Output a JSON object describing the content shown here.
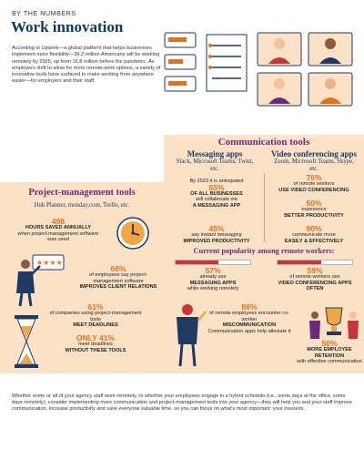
{
  "header": {
    "kicker": "BY THE NUMBERS",
    "title": "Work innovation",
    "intro": "According to Upwork—a global platform that helps businesses implement more flexibility—36.2 million Americans will be working remotely by 2025, up from 16.8 million before the pandemic. As employers shift to allow for more remote-work options, a variety of innovative tools have surfaced to make working from anywhere easier—for employers and their staff."
  },
  "communication": {
    "heading": "Communication tools",
    "messaging": {
      "title": "Messaging apps",
      "examples": "Slack, Microsoft Teams, Twist, etc.",
      "stat1_pre": "By 2023 it is anticipated",
      "stat1_value": "55%",
      "stat1_strong": "OF ALL BUSINESSES",
      "stat1_mid": "will collaborate via",
      "stat1_end": "A MESSAGING APP",
      "stat2_value": "45%",
      "stat2_text": "say instant messaging",
      "stat2_strong": "IMPROVED PRODUCTIVITY"
    },
    "video": {
      "title": "Video conferencing apps",
      "examples": "Zoom, Microsoft Teams, Skype, etc.",
      "stat1_value": "76%",
      "stat1_text": "of remote workers",
      "stat1_strong": "USE VIDEO CONFERENCING",
      "stat2_value": "50%",
      "stat2_text": "experience",
      "stat2_strong": "BETTER PRODUCTIVITY",
      "stat3_value": "90%",
      "stat3_text": "communicate more",
      "stat3_strong": "EASILY & EFFECTIVELY"
    }
  },
  "popularity": {
    "heading": "Current popularity among remote workers:",
    "messaging": {
      "value": "57%",
      "fraction": 0.57,
      "text": "already use",
      "strong": "MESSAGING APPS",
      "end": "while working remotely"
    },
    "video": {
      "value": "59%",
      "fraction": 0.59,
      "text": "of remote workers use",
      "strong": "VIDEO CONFERENCING APPS OFTEN"
    }
  },
  "project": {
    "heading": "Project-management tools",
    "examples": "Hub Planner, monday.com, Trello, etc.",
    "stat1_value": "498",
    "stat1_strong": "HOURS SAVED ANNUALLY",
    "stat1_text": "when project-management software was used",
    "stat2_value": "66%",
    "stat2_text": "of employees say project-management software",
    "stat2_strong": "IMPROVES CLIENT RELATIONS",
    "stat3_value": "61%",
    "stat3_text": "of companies using project-management tools",
    "stat3_strong": "MEET DEADLINES",
    "stat4_value": "ONLY 41%",
    "stat4_text": "meet deadlines",
    "stat4_strong": "WITHOUT THESE TOOLS"
  },
  "miscom": {
    "stat_value": "88%",
    "stat_text": "of remote employees encounter co-worker",
    "stat_strong": "MISCOMMUNICATION",
    "stat_end": "Communication apps help alleviate it"
  },
  "retention": {
    "stat_value": "50%",
    "stat_strong": "MORE EMPLOYEE RETENTION",
    "stat_text": "with effective communication"
  },
  "footer": {
    "text": "Whether some or all of your agency staff work remotely, or whether your employees engage in a hybrid schedule (i.e., some days at the office, some days remotely), consider implementing more communication and project-management tools into your agency—they will help you and your staff improve communication, increase productivity and save everyone valuable time, so you can focus on what's most important: your insureds."
  },
  "colors": {
    "navy": "#1d3a63",
    "purple": "#6a2b7e",
    "orange": "#e2711d",
    "peach": "#fbe1c6",
    "red": "#c7343a"
  },
  "icons": [
    "rating-card-icon",
    "video-call-people-icon",
    "clock-icon",
    "hourglass-icon",
    "trophy-icon",
    "megaphone-person-icon"
  ]
}
